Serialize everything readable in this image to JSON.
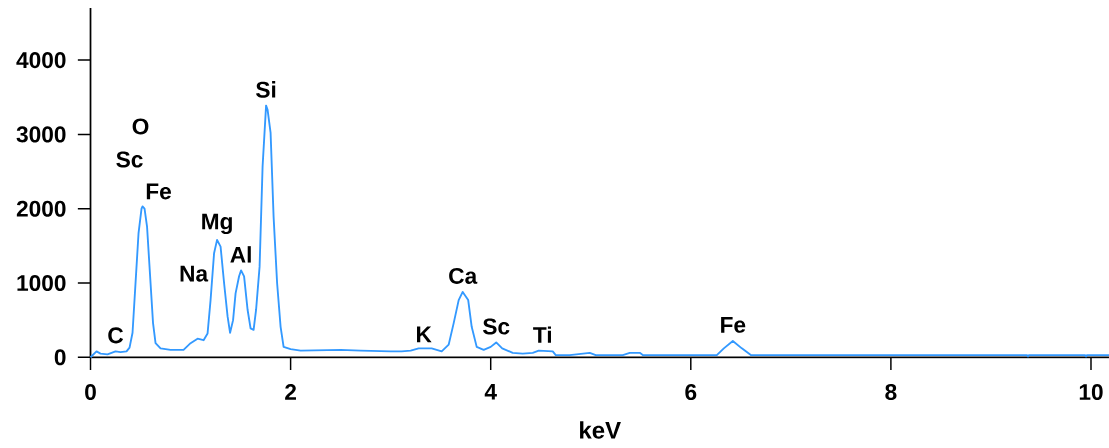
{
  "chart_data": {
    "type": "line",
    "xlabel": "keV",
    "color": "#3399ff",
    "marker": "none",
    "line_style": "solid",
    "xlim": [
      0,
      10.18
    ],
    "ylim": [
      0,
      4700
    ],
    "xticks": [
      0,
      2,
      4,
      6,
      8,
      10
    ],
    "yticks": [
      0,
      1000,
      2000,
      3000,
      4000
    ],
    "x": [
      0.0,
      0.06,
      0.1,
      0.17,
      0.25,
      0.3,
      0.36,
      0.39,
      0.42,
      0.45,
      0.48,
      0.51,
      0.52,
      0.54,
      0.565,
      0.6,
      0.625,
      0.65,
      0.7,
      0.8,
      0.93,
      1.0,
      1.07,
      1.13,
      1.17,
      1.2,
      1.235,
      1.265,
      1.3,
      1.335,
      1.37,
      1.395,
      1.425,
      1.45,
      1.485,
      1.505,
      1.535,
      1.57,
      1.6,
      1.63,
      1.655,
      1.69,
      1.72,
      1.755,
      1.77,
      1.8,
      1.83,
      1.865,
      1.9,
      1.93,
      2.0,
      2.1,
      2.5,
      2.7,
      3.0,
      3.11,
      3.2,
      3.28,
      3.41,
      3.51,
      3.58,
      3.63,
      3.68,
      3.72,
      3.775,
      3.81,
      3.86,
      3.93,
      4.0,
      4.055,
      4.115,
      4.22,
      4.32,
      4.42,
      4.48,
      4.62,
      4.65,
      4.79,
      4.99,
      5.05,
      5.32,
      5.39,
      5.49,
      5.52,
      6.26,
      6.33,
      6.42,
      6.51,
      6.6,
      9.36,
      9.37,
      9.38,
      9.94,
      9.95,
      9.96,
      10.18
    ],
    "values": [
      0,
      80,
      50,
      40,
      80,
      70,
      80,
      130,
      330,
      1000,
      1670,
      2000,
      2030,
      2000,
      1760,
      1000,
      460,
      190,
      120,
      100,
      100,
      190,
      250,
      230,
      320,
      770,
      1400,
      1580,
      1490,
      1000,
      550,
      330,
      500,
      860,
      1090,
      1170,
      1090,
      640,
      390,
      370,
      640,
      1220,
      2570,
      3390,
      3330,
      3020,
      1890,
      1000,
      410,
      140,
      110,
      90,
      100,
      90,
      80,
      80,
      90,
      120,
      120,
      80,
      170,
      460,
      770,
      880,
      770,
      410,
      140,
      100,
      140,
      200,
      120,
      60,
      50,
      60,
      90,
      80,
      30,
      30,
      60,
      30,
      30,
      60,
      60,
      30,
      30,
      120,
      220,
      120,
      30,
      30,
      10,
      30,
      30,
      10,
      30,
      30
    ],
    "annotations": [
      {
        "text": "C",
        "x": 0.25,
        "y": 80
      },
      {
        "text": "Fe",
        "x": 0.52,
        "y": 2030
      },
      {
        "text": "Sc",
        "x": 0.52,
        "y": 2030
      },
      "O",
      {
        "text": "Na",
        "x": 1.07,
        "y": 250
      },
      {
        "text": "Mg",
        "x": 1.265,
        "y": 1580
      },
      {
        "text": "Al",
        "x": 1.505,
        "y": 1170
      },
      {
        "text": "Si",
        "x": 1.755,
        "y": 3390
      },
      {
        "text": "K",
        "x": 3.28,
        "y": 120
      },
      {
        "text": "Ca",
        "x": 3.72,
        "y": 880
      },
      {
        "text": "Sc",
        "x": 4.055,
        "y": 200
      },
      {
        "text": "Ti",
        "x": 4.48,
        "y": 90
      },
      {
        "text": "Fe",
        "x": 6.42,
        "y": 220
      }
    ]
  }
}
